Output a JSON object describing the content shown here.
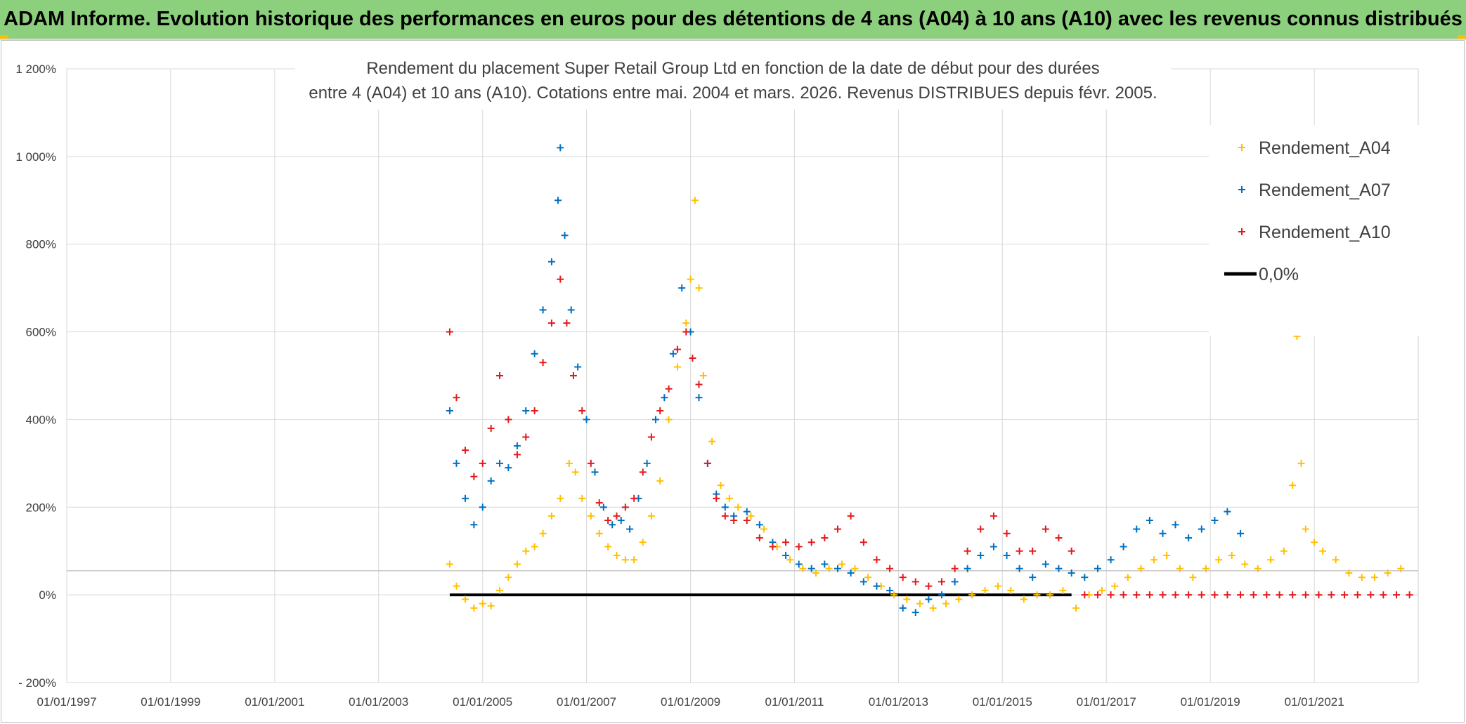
{
  "header": {
    "title": "ADAM Informe. Evolution historique des performances en euros pour des détentions de 4 ans (A04) à 10 ans (A10) avec les revenus connus distribués"
  },
  "chart_data": {
    "type": "scatter",
    "title_lines": [
      "Rendement du placement Super Retail Group Ltd en fonction de la date de début pour des durées",
      "entre 4 (A04) et 10 ans (A10). Cotations entre mai. 2004 et mars. 2026. Revenus DISTRIBUES depuis févr. 2005."
    ],
    "xlabel": "",
    "ylabel": "",
    "xlim": [
      "1997-01-01",
      "2023-01-01"
    ],
    "ylim": [
      -200,
      1200
    ],
    "x_ticks": [
      "01/01/1997",
      "01/01/1999",
      "01/01/2001",
      "01/01/2003",
      "01/01/2005",
      "01/01/2007",
      "01/01/2009",
      "01/01/2011",
      "01/01/2013",
      "01/01/2015",
      "01/01/2017",
      "01/01/2019",
      "01/01/2021"
    ],
    "y_ticks": [
      "- 200%",
      "0%",
      "200%",
      "400%",
      "600%",
      "800%",
      "1 000%",
      "1 200%"
    ],
    "y_tick_values": [
      -200,
      0,
      200,
      400,
      600,
      800,
      1000,
      1200
    ],
    "grid": true,
    "legend_position": "top-right",
    "series": [
      {
        "name": "Rendement_A04",
        "color": "#ffc000",
        "marker": "+",
        "points": [
          [
            "2004-05-15",
            70
          ],
          [
            "2004-07-01",
            20
          ],
          [
            "2004-09-01",
            -10
          ],
          [
            "2004-11-01",
            -30
          ],
          [
            "2005-01-01",
            -20
          ],
          [
            "2005-03-01",
            -25
          ],
          [
            "2005-05-01",
            10
          ],
          [
            "2005-07-01",
            40
          ],
          [
            "2005-09-01",
            70
          ],
          [
            "2005-11-01",
            100
          ],
          [
            "2006-01-01",
            110
          ],
          [
            "2006-03-01",
            140
          ],
          [
            "2006-05-01",
            180
          ],
          [
            "2006-07-01",
            220
          ],
          [
            "2006-09-01",
            300
          ],
          [
            "2006-10-15",
            280
          ],
          [
            "2006-12-01",
            220
          ],
          [
            "2007-02-01",
            180
          ],
          [
            "2007-04-01",
            140
          ],
          [
            "2007-06-01",
            110
          ],
          [
            "2007-08-01",
            90
          ],
          [
            "2007-10-01",
            80
          ],
          [
            "2007-12-01",
            80
          ],
          [
            "2008-02-01",
            120
          ],
          [
            "2008-04-01",
            180
          ],
          [
            "2008-06-01",
            260
          ],
          [
            "2008-08-01",
            400
          ],
          [
            "2008-10-01",
            520
          ],
          [
            "2008-12-01",
            620
          ],
          [
            "2009-01-01",
            720
          ],
          [
            "2009-02-01",
            900
          ],
          [
            "2009-03-01",
            700
          ],
          [
            "2009-04-01",
            500
          ],
          [
            "2009-06-01",
            350
          ],
          [
            "2009-08-01",
            250
          ],
          [
            "2009-10-01",
            220
          ],
          [
            "2009-12-01",
            200
          ],
          [
            "2010-03-01",
            180
          ],
          [
            "2010-06-01",
            150
          ],
          [
            "2010-09-01",
            110
          ],
          [
            "2010-12-01",
            80
          ],
          [
            "2011-03-01",
            60
          ],
          [
            "2011-06-01",
            50
          ],
          [
            "2011-09-01",
            60
          ],
          [
            "2011-12-01",
            70
          ],
          [
            "2012-03-01",
            60
          ],
          [
            "2012-06-01",
            40
          ],
          [
            "2012-09-01",
            20
          ],
          [
            "2012-12-01",
            0
          ],
          [
            "2013-03-01",
            -10
          ],
          [
            "2013-06-01",
            -20
          ],
          [
            "2013-09-01",
            -30
          ],
          [
            "2013-12-01",
            -20
          ],
          [
            "2014-03-01",
            -10
          ],
          [
            "2014-06-01",
            0
          ],
          [
            "2014-09-01",
            10
          ],
          [
            "2014-12-01",
            20
          ],
          [
            "2015-03-01",
            10
          ],
          [
            "2015-06-01",
            -10
          ],
          [
            "2015-09-01",
            0
          ],
          [
            "2015-12-01",
            0
          ],
          [
            "2016-03-01",
            10
          ],
          [
            "2016-06-01",
            -30
          ],
          [
            "2016-09-01",
            0
          ],
          [
            "2016-12-01",
            10
          ],
          [
            "2017-03-01",
            20
          ],
          [
            "2017-06-01",
            40
          ],
          [
            "2017-09-01",
            60
          ],
          [
            "2017-12-01",
            80
          ],
          [
            "2018-03-01",
            90
          ],
          [
            "2018-06-01",
            60
          ],
          [
            "2018-09-01",
            40
          ],
          [
            "2018-12-01",
            60
          ],
          [
            "2019-03-01",
            80
          ],
          [
            "2019-06-01",
            90
          ],
          [
            "2019-09-01",
            70
          ],
          [
            "2019-12-01",
            60
          ],
          [
            "2020-03-01",
            80
          ],
          [
            "2020-06-01",
            100
          ],
          [
            "2020-08-01",
            250
          ],
          [
            "2020-09-01",
            590
          ],
          [
            "2020-10-01",
            300
          ],
          [
            "2020-11-01",
            150
          ],
          [
            "2021-01-01",
            120
          ],
          [
            "2021-03-01",
            100
          ],
          [
            "2021-06-01",
            80
          ],
          [
            "2021-09-01",
            50
          ],
          [
            "2021-12-01",
            40
          ],
          [
            "2022-03-01",
            40
          ],
          [
            "2022-06-01",
            50
          ],
          [
            "2022-09-01",
            60
          ]
        ]
      },
      {
        "name": "Rendement_A07",
        "color": "#0070c0",
        "marker": "+",
        "points": [
          [
            "2004-05-15",
            420
          ],
          [
            "2004-07-01",
            300
          ],
          [
            "2004-09-01",
            220
          ],
          [
            "2004-11-01",
            160
          ],
          [
            "2005-01-01",
            200
          ],
          [
            "2005-03-01",
            260
          ],
          [
            "2005-05-01",
            300
          ],
          [
            "2005-07-01",
            290
          ],
          [
            "2005-09-01",
            340
          ],
          [
            "2005-11-01",
            420
          ],
          [
            "2006-01-01",
            550
          ],
          [
            "2006-03-01",
            650
          ],
          [
            "2006-05-01",
            760
          ],
          [
            "2006-06-15",
            900
          ],
          [
            "2006-07-01",
            1020
          ],
          [
            "2006-08-01",
            820
          ],
          [
            "2006-09-15",
            650
          ],
          [
            "2006-11-01",
            520
          ],
          [
            "2007-01-01",
            400
          ],
          [
            "2007-03-01",
            280
          ],
          [
            "2007-05-01",
            200
          ],
          [
            "2007-07-01",
            160
          ],
          [
            "2007-09-01",
            170
          ],
          [
            "2007-11-01",
            150
          ],
          [
            "2008-01-01",
            220
          ],
          [
            "2008-03-01",
            300
          ],
          [
            "2008-05-01",
            400
          ],
          [
            "2008-07-01",
            450
          ],
          [
            "2008-09-01",
            550
          ],
          [
            "2008-11-01",
            700
          ],
          [
            "2009-01-01",
            600
          ],
          [
            "2009-03-01",
            450
          ],
          [
            "2009-05-01",
            300
          ],
          [
            "2009-07-01",
            230
          ],
          [
            "2009-09-01",
            200
          ],
          [
            "2009-11-01",
            180
          ],
          [
            "2010-02-01",
            190
          ],
          [
            "2010-05-01",
            160
          ],
          [
            "2010-08-01",
            120
          ],
          [
            "2010-11-01",
            90
          ],
          [
            "2011-02-01",
            70
          ],
          [
            "2011-05-01",
            60
          ],
          [
            "2011-08-01",
            70
          ],
          [
            "2011-11-01",
            60
          ],
          [
            "2012-02-01",
            50
          ],
          [
            "2012-05-01",
            30
          ],
          [
            "2012-08-01",
            20
          ],
          [
            "2012-11-01",
            10
          ],
          [
            "2013-02-01",
            -30
          ],
          [
            "2013-05-01",
            -40
          ],
          [
            "2013-08-01",
            -10
          ],
          [
            "2013-11-01",
            0
          ],
          [
            "2014-02-01",
            30
          ],
          [
            "2014-05-01",
            60
          ],
          [
            "2014-08-01",
            90
          ],
          [
            "2014-11-01",
            110
          ],
          [
            "2015-02-01",
            90
          ],
          [
            "2015-05-01",
            60
          ],
          [
            "2015-08-01",
            40
          ],
          [
            "2015-11-01",
            70
          ],
          [
            "2016-02-01",
            60
          ],
          [
            "2016-05-01",
            50
          ],
          [
            "2016-08-01",
            40
          ],
          [
            "2016-11-01",
            60
          ],
          [
            "2017-02-01",
            80
          ],
          [
            "2017-05-01",
            110
          ],
          [
            "2017-08-01",
            150
          ],
          [
            "2017-11-01",
            170
          ],
          [
            "2018-02-01",
            140
          ],
          [
            "2018-05-01",
            160
          ],
          [
            "2018-08-01",
            130
          ],
          [
            "2018-11-01",
            150
          ],
          [
            "2019-02-01",
            170
          ],
          [
            "2019-05-01",
            190
          ],
          [
            "2019-08-01",
            140
          ]
        ]
      },
      {
        "name": "Rendement_A10",
        "color": "#e31a1c",
        "marker": "+",
        "points": [
          [
            "2004-05-15",
            600
          ],
          [
            "2004-07-01",
            450
          ],
          [
            "2004-09-01",
            330
          ],
          [
            "2004-11-01",
            270
          ],
          [
            "2005-01-01",
            300
          ],
          [
            "2005-03-01",
            380
          ],
          [
            "2005-05-01",
            500
          ],
          [
            "2005-07-01",
            400
          ],
          [
            "2005-09-01",
            320
          ],
          [
            "2005-11-01",
            360
          ],
          [
            "2006-01-01",
            420
          ],
          [
            "2006-03-01",
            530
          ],
          [
            "2006-05-01",
            620
          ],
          [
            "2006-07-01",
            720
          ],
          [
            "2006-08-15",
            620
          ],
          [
            "2006-10-01",
            500
          ],
          [
            "2006-12-01",
            420
          ],
          [
            "2007-02-01",
            300
          ],
          [
            "2007-04-01",
            210
          ],
          [
            "2007-06-01",
            170
          ],
          [
            "2007-08-01",
            180
          ],
          [
            "2007-10-01",
            200
          ],
          [
            "2007-12-01",
            220
          ],
          [
            "2008-02-01",
            280
          ],
          [
            "2008-04-01",
            360
          ],
          [
            "2008-06-01",
            420
          ],
          [
            "2008-08-01",
            470
          ],
          [
            "2008-10-01",
            560
          ],
          [
            "2008-12-01",
            600
          ],
          [
            "2009-01-15",
            540
          ],
          [
            "2009-03-01",
            480
          ],
          [
            "2009-05-01",
            300
          ],
          [
            "2009-07-01",
            220
          ],
          [
            "2009-09-01",
            180
          ],
          [
            "2009-11-01",
            170
          ],
          [
            "2010-02-01",
            170
          ],
          [
            "2010-05-01",
            130
          ],
          [
            "2010-08-01",
            110
          ],
          [
            "2010-11-01",
            120
          ],
          [
            "2011-02-01",
            110
          ],
          [
            "2011-05-01",
            120
          ],
          [
            "2011-08-01",
            130
          ],
          [
            "2011-11-01",
            150
          ],
          [
            "2012-02-01",
            180
          ],
          [
            "2012-05-01",
            120
          ],
          [
            "2012-08-01",
            80
          ],
          [
            "2012-11-01",
            60
          ],
          [
            "2013-02-01",
            40
          ],
          [
            "2013-05-01",
            30
          ],
          [
            "2013-08-01",
            20
          ],
          [
            "2013-11-01",
            30
          ],
          [
            "2014-02-01",
            60
          ],
          [
            "2014-05-01",
            100
          ],
          [
            "2014-08-01",
            150
          ],
          [
            "2014-11-01",
            180
          ],
          [
            "2015-02-01",
            140
          ],
          [
            "2015-05-01",
            100
          ],
          [
            "2015-08-01",
            100
          ],
          [
            "2015-11-01",
            150
          ],
          [
            "2016-02-01",
            130
          ],
          [
            "2016-05-01",
            100
          ],
          [
            "2016-08-01",
            0
          ],
          [
            "2016-11-01",
            0
          ],
          [
            "2017-02-01",
            0
          ],
          [
            "2017-05-01",
            0
          ],
          [
            "2017-08-01",
            0
          ],
          [
            "2017-11-01",
            0
          ],
          [
            "2018-02-01",
            0
          ],
          [
            "2018-05-01",
            0
          ],
          [
            "2018-08-01",
            0
          ],
          [
            "2018-11-01",
            0
          ],
          [
            "2019-02-01",
            0
          ],
          [
            "2019-05-01",
            0
          ],
          [
            "2019-08-01",
            0
          ],
          [
            "2019-11-01",
            0
          ],
          [
            "2020-02-01",
            0
          ],
          [
            "2020-05-01",
            0
          ],
          [
            "2020-08-01",
            0
          ],
          [
            "2020-11-01",
            0
          ],
          [
            "2021-02-01",
            0
          ],
          [
            "2021-05-01",
            0
          ],
          [
            "2021-08-01",
            0
          ],
          [
            "2021-11-01",
            0
          ],
          [
            "2022-02-01",
            0
          ],
          [
            "2022-05-01",
            0
          ],
          [
            "2022-08-01",
            0
          ],
          [
            "2022-11-01",
            0
          ]
        ]
      },
      {
        "name": "0,0%",
        "color": "#000000",
        "marker": "line",
        "points": [
          [
            "2004-05-15",
            0
          ],
          [
            "2016-05-01",
            0
          ]
        ]
      }
    ]
  }
}
